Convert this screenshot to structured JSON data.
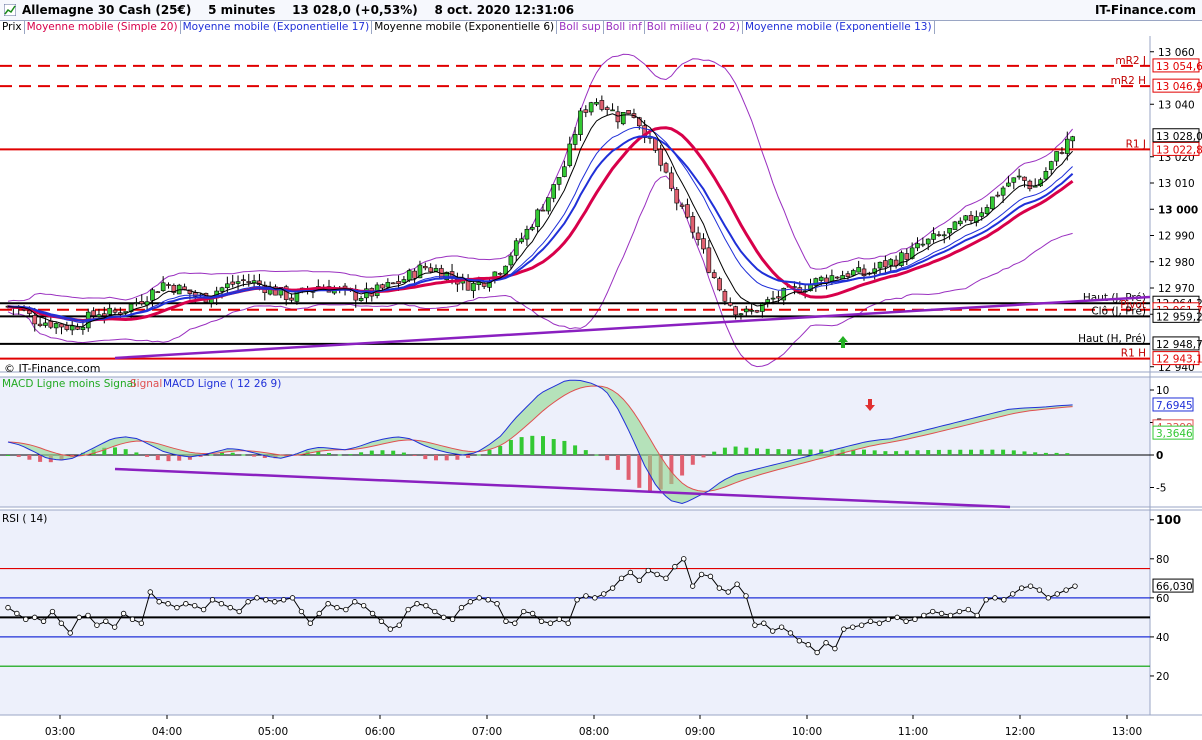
{
  "header": {
    "instrument": "Allemagne 30 Cash (25€)",
    "timeframe": "5 minutes",
    "quote": "13 028,0 (+0,53%)",
    "datetime": "8 oct. 2020 12:31:06",
    "brand": "IT-Finance.com",
    "watermark": "© IT-Finance.com"
  },
  "legend": [
    {
      "label": "Prix",
      "color": "#000000"
    },
    {
      "label": "Moyenne mobile (Simple 20)",
      "color": "#d8004a"
    },
    {
      "label": "Moyenne mobile (Exponentielle 17)",
      "color": "#2030d8"
    },
    {
      "label": "Moyenne mobile (Exponentielle 6)",
      "color": "#000000"
    },
    {
      "label": "Boll sup",
      "color": "#9a30c0"
    },
    {
      "label": "Boll inf",
      "color": "#9a30c0"
    },
    {
      "label": "Boll milieu ( 20 2)",
      "color": "#9a30c0"
    },
    {
      "label": "Moyenne mobile (Exponentielle 13)",
      "color": "#2030d8"
    }
  ],
  "colors": {
    "up": "#33c833",
    "down": "#e06070",
    "resistance": "#e00000",
    "sma20": "#d8004a",
    "ema17": "#2030d8",
    "ema6": "#000000",
    "boll": "#9a30c0",
    "trend": "#8a20c0",
    "grid": "#9aa6c4",
    "panelBg": "#edf0fb"
  },
  "chart_data": [
    {
      "type": "candlestick",
      "title": "Allemagne 30 Cash (25€)",
      "x_ticks": [
        "03:00",
        "04:00",
        "05:00",
        "06:00",
        "07:00",
        "08:00",
        "09:00",
        "10:00",
        "11:00",
        "12:00",
        "13:00"
      ],
      "ylim": [
        12938,
        13066
      ],
      "y_ticks": [
        {
          "value": 13060,
          "label": "13 060"
        },
        {
          "value": 13040,
          "label": "13 040"
        },
        {
          "value": 13020,
          "label": "13 020"
        },
        {
          "value": 13010,
          "label": "13 010"
        },
        {
          "value": 13000,
          "label": "13 000"
        },
        {
          "value": 12990,
          "label": "12 990"
        },
        {
          "value": 12980,
          "label": "12 980"
        },
        {
          "value": 12970,
          "label": "12 970"
        },
        {
          "value": 12960,
          "label": "12 960"
        },
        {
          "value": 12940,
          "label": "12 940"
        }
      ],
      "price_anchors": [
        12963,
        12962,
        12958,
        12957,
        12956,
        12955,
        12958,
        12961,
        12960,
        12962,
        12965,
        12968,
        12972,
        12970,
        12968,
        12966,
        12969,
        12971,
        12973,
        12972,
        12970,
        12968,
        12966,
        12969,
        12971,
        12970,
        12968,
        12967,
        12968,
        12970,
        12972,
        12975,
        12978,
        12977,
        12975,
        12972,
        12971,
        12974,
        12978,
        12985,
        12992,
        13000,
        13008,
        13018,
        13035,
        13042,
        13040,
        13035,
        13038,
        13030,
        13020,
        13008,
        12998,
        12990,
        12978,
        12968,
        12962,
        12960,
        12963,
        12966,
        12968,
        12970,
        12972,
        12974,
        12975,
        12976,
        12975,
        12978,
        12980,
        12982,
        12985,
        12988,
        12990,
        12993,
        12996,
        13000,
        13005,
        13010,
        13012,
        13008,
        13015,
        13022,
        13028
      ],
      "levels": [
        {
          "name": "mR2 J",
          "value": 13054.6,
          "label": "13 054,6",
          "style": "dashed",
          "color": "#e00000"
        },
        {
          "name": "mR2 H",
          "value": 13046.9,
          "label": "13 046,9",
          "style": "dashed",
          "color": "#e00000"
        },
        {
          "name": "R1 J",
          "value": 13022.8,
          "label": "13 022,8",
          "style": "solid",
          "color": "#e00000"
        },
        {
          "name": "Haut (J, Pré)",
          "value": 12964.2,
          "label": "12 964,2",
          "style": "solid",
          "color": "#000000"
        },
        {
          "name": "Pivot",
          "value": 12961.7,
          "label": "12 961,7",
          "style": "dashed",
          "color": "#e00000"
        },
        {
          "name": "Clô (J, Pré)",
          "value": 12959.2,
          "label": "12 959,2",
          "style": "solid",
          "color": "#000000"
        },
        {
          "name": "Haut (H, Pré)",
          "value": 12948.7,
          "label": "12 948,7",
          "style": "solid",
          "color": "#000000"
        },
        {
          "name": "R1 H",
          "value": 12943.1,
          "label": "12 943,1",
          "style": "solid",
          "color": "#e00000"
        }
      ],
      "last_price": {
        "value": 13028.0,
        "label": "13 028,0"
      }
    },
    {
      "type": "bar",
      "title": "MACD Ligne ( 12 26 9)",
      "series_labels": [
        "MACD Ligne moins Signal",
        "Signal",
        "MACD Ligne ( 12 26 9)"
      ],
      "ylim": [
        -8,
        12
      ],
      "y_ticks": [
        {
          "value": 10,
          "label": "10"
        },
        {
          "value": 5,
          "label": "5"
        },
        {
          "value": 0,
          "label": "0"
        },
        {
          "value": -5,
          "label": "-5"
        }
      ],
      "macd_anchors": [
        2,
        1.5,
        0.5,
        -0.5,
        -0.8,
        -0.5,
        0.5,
        1.5,
        2.5,
        2.8,
        2.5,
        1.5,
        0.5,
        0,
        -0.3,
        0,
        0.5,
        1,
        0.8,
        0.3,
        -0.2,
        -0.5,
        0,
        0.8,
        1.2,
        1,
        0.8,
        1.3,
        2,
        2.5,
        2.8,
        2.5,
        1.5,
        0.8,
        0.3,
        0,
        0.3,
        1.5,
        3,
        5.5,
        7.5,
        9.5,
        10.5,
        11.5,
        11.5,
        11,
        10,
        7,
        3,
        -1.5,
        -5,
        -7,
        -7.5,
        -6.5,
        -5.5,
        -4,
        -3,
        -2.5,
        -2,
        -1.5,
        -1,
        -0.5,
        0,
        0.5,
        1,
        1.5,
        2,
        2.3,
        2.5,
        3,
        3.5,
        4,
        4.5,
        5,
        5.5,
        6,
        6.5,
        7,
        7.2,
        7.3,
        7.4,
        7.6,
        7.7
      ],
      "last_values": [
        {
          "label": "7,6945",
          "value": 7.6945,
          "color": "#2030d8"
        },
        {
          "label": "4,3299",
          "value": 4.3299,
          "color": "#e05050"
        },
        {
          "label": "3,3646",
          "value": 3.3646,
          "color": "#33c833"
        }
      ]
    },
    {
      "type": "line",
      "title": "RSI ( 14)",
      "ylim": [
        0,
        105
      ],
      "y_ticks": [
        {
          "value": 100,
          "label": "100"
        },
        {
          "value": 80,
          "label": "80"
        },
        {
          "value": 60,
          "label": "60"
        },
        {
          "value": 40,
          "label": "40"
        },
        {
          "value": 20,
          "label": "20"
        }
      ],
      "levels": [
        {
          "value": 75,
          "color": "#e00000"
        },
        {
          "value": 60,
          "color": "#2030d8"
        },
        {
          "value": 50,
          "color": "#000000"
        },
        {
          "value": 40,
          "color": "#2030d8"
        },
        {
          "value": 25,
          "color": "#00a000"
        }
      ],
      "values": [
        55,
        52,
        49,
        50,
        48,
        53,
        47,
        42,
        50,
        51,
        46,
        48,
        45,
        52,
        49,
        47,
        63,
        58,
        57,
        55,
        57,
        56,
        54,
        59,
        57,
        55,
        53,
        58,
        60,
        59,
        58,
        59,
        60,
        53,
        47,
        52,
        57,
        55,
        54,
        58,
        56,
        52,
        48,
        44,
        46,
        54,
        57,
        56,
        53,
        50,
        49,
        55,
        58,
        60,
        59,
        57,
        48,
        47,
        53,
        52,
        48,
        47,
        49,
        47,
        59,
        61,
        60,
        62,
        65,
        70,
        73,
        69,
        74,
        72,
        70,
        76,
        80,
        66,
        72,
        71,
        65,
        63,
        67,
        61,
        46,
        47,
        43,
        45,
        42,
        38,
        36,
        32,
        37,
        34,
        44,
        45,
        46,
        48,
        47,
        49,
        50,
        48,
        49,
        51,
        53,
        52,
        51,
        53,
        54,
        51,
        59,
        60,
        59,
        62,
        65,
        66,
        64,
        60,
        62,
        64,
        66
      ],
      "last_value": {
        "label": "66,030",
        "value": 66.03
      }
    }
  ]
}
